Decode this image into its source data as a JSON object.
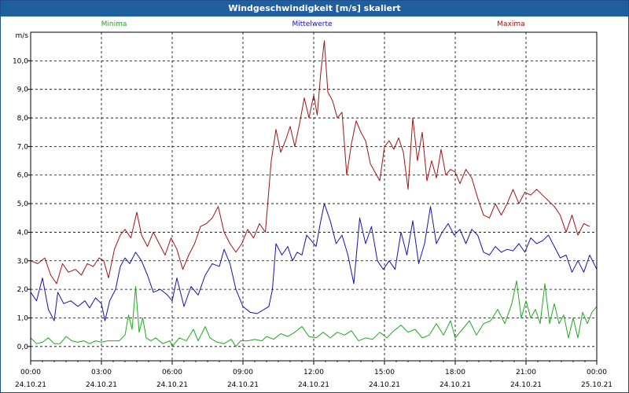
{
  "window": {
    "title": "Windgeschwindigkeit [m/s] skaliert"
  },
  "chart_data": {
    "type": "line",
    "unit_label": "m/s",
    "ylim": [
      -0.5,
      11.0
    ],
    "y_ticks": [
      0.0,
      1.0,
      2.0,
      3.0,
      4.0,
      5.0,
      6.0,
      7.0,
      8.0,
      9.0,
      10.0
    ],
    "y_tick_labels": [
      "0,0",
      "1,0",
      "2,0",
      "3,0",
      "4,0",
      "5,0",
      "6,0",
      "7,0",
      "8,0",
      "9,0",
      "10,0"
    ],
    "xlim": [
      0,
      24
    ],
    "x_ticks": [
      0,
      3,
      6,
      9,
      12,
      15,
      18,
      21,
      24
    ],
    "x_tick_labels": [
      [
        "00:00",
        "24.10.21"
      ],
      [
        "03:00",
        "24.10.21"
      ],
      [
        "06:00",
        "24.10.21"
      ],
      [
        "09:00",
        "24.10.21"
      ],
      [
        "12:00",
        "24.10.21"
      ],
      [
        "15:00",
        "24.10.21"
      ],
      [
        "18:00",
        "24.10.21"
      ],
      [
        "21:00",
        "24.10.21"
      ],
      [
        "00:00",
        "25.10.21"
      ]
    ],
    "grid": true,
    "legend_position": "top",
    "series": [
      {
        "name": "Minima",
        "color": "#1faa1f",
        "values": [
          [
            0.0,
            0.3
          ],
          [
            0.25,
            0.1
          ],
          [
            0.5,
            0.15
          ],
          [
            0.75,
            0.3
          ],
          [
            1.0,
            0.1
          ],
          [
            1.25,
            0.1
          ],
          [
            1.5,
            0.35
          ],
          [
            1.75,
            0.2
          ],
          [
            2.0,
            0.15
          ],
          [
            2.25,
            0.2
          ],
          [
            2.5,
            0.1
          ],
          [
            2.75,
            0.2
          ],
          [
            3.0,
            0.15
          ],
          [
            3.25,
            0.2
          ],
          [
            3.5,
            0.2
          ],
          [
            3.75,
            0.2
          ],
          [
            4.0,
            0.4
          ],
          [
            4.15,
            1.1
          ],
          [
            4.3,
            0.6
          ],
          [
            4.45,
            2.1
          ],
          [
            4.6,
            0.5
          ],
          [
            4.75,
            1.0
          ],
          [
            4.9,
            0.3
          ],
          [
            5.1,
            0.2
          ],
          [
            5.3,
            0.3
          ],
          [
            5.6,
            0.1
          ],
          [
            5.9,
            0.2
          ],
          [
            6.0,
            0.0
          ],
          [
            6.3,
            0.3
          ],
          [
            6.6,
            0.2
          ],
          [
            6.9,
            0.6
          ],
          [
            7.1,
            0.2
          ],
          [
            7.4,
            0.7
          ],
          [
            7.6,
            0.3
          ],
          [
            7.9,
            0.15
          ],
          [
            8.2,
            0.1
          ],
          [
            8.5,
            0.25
          ],
          [
            8.7,
            0.0
          ],
          [
            8.9,
            0.2
          ],
          [
            9.2,
            0.2
          ],
          [
            9.5,
            0.25
          ],
          [
            9.8,
            0.2
          ],
          [
            10.0,
            0.35
          ],
          [
            10.3,
            0.25
          ],
          [
            10.6,
            0.45
          ],
          [
            10.9,
            0.35
          ],
          [
            11.2,
            0.5
          ],
          [
            11.5,
            0.7
          ],
          [
            11.8,
            0.35
          ],
          [
            12.1,
            0.3
          ],
          [
            12.4,
            0.5
          ],
          [
            12.7,
            0.3
          ],
          [
            13.0,
            0.5
          ],
          [
            13.3,
            0.4
          ],
          [
            13.6,
            0.55
          ],
          [
            13.9,
            0.2
          ],
          [
            14.2,
            0.3
          ],
          [
            14.5,
            0.25
          ],
          [
            14.8,
            0.5
          ],
          [
            15.1,
            0.3
          ],
          [
            15.4,
            0.55
          ],
          [
            15.7,
            0.75
          ],
          [
            16.0,
            0.5
          ],
          [
            16.3,
            0.6
          ],
          [
            16.6,
            0.3
          ],
          [
            16.9,
            0.4
          ],
          [
            17.2,
            0.8
          ],
          [
            17.5,
            0.4
          ],
          [
            17.8,
            0.9
          ],
          [
            18.0,
            0.3
          ],
          [
            18.3,
            0.6
          ],
          [
            18.6,
            0.9
          ],
          [
            18.9,
            0.4
          ],
          [
            19.2,
            0.8
          ],
          [
            19.5,
            0.9
          ],
          [
            19.8,
            1.3
          ],
          [
            20.1,
            0.8
          ],
          [
            20.4,
            1.5
          ],
          [
            20.6,
            2.3
          ],
          [
            20.8,
            1.0
          ],
          [
            21.0,
            1.6
          ],
          [
            21.2,
            1.0
          ],
          [
            21.4,
            1.3
          ],
          [
            21.6,
            0.8
          ],
          [
            21.8,
            2.2
          ],
          [
            22.0,
            0.8
          ],
          [
            22.2,
            1.5
          ],
          [
            22.4,
            0.8
          ],
          [
            22.6,
            1.1
          ],
          [
            22.8,
            0.3
          ],
          [
            23.0,
            1.0
          ],
          [
            23.2,
            0.3
          ],
          [
            23.4,
            1.2
          ],
          [
            23.6,
            0.8
          ],
          [
            23.8,
            1.2
          ],
          [
            24.0,
            1.4
          ]
        ]
      },
      {
        "name": "Mittelwerte",
        "color": "#1414aa",
        "values": [
          [
            0.0,
            1.9
          ],
          [
            0.25,
            1.6
          ],
          [
            0.5,
            2.4
          ],
          [
            0.75,
            1.3
          ],
          [
            1.0,
            0.9
          ],
          [
            1.15,
            1.9
          ],
          [
            1.4,
            1.5
          ],
          [
            1.7,
            1.6
          ],
          [
            2.0,
            1.4
          ],
          [
            2.3,
            1.6
          ],
          [
            2.5,
            1.35
          ],
          [
            2.75,
            1.7
          ],
          [
            3.0,
            1.5
          ],
          [
            3.15,
            0.9
          ],
          [
            3.35,
            1.6
          ],
          [
            3.6,
            2.0
          ],
          [
            3.8,
            2.8
          ],
          [
            4.0,
            3.1
          ],
          [
            4.2,
            2.9
          ],
          [
            4.45,
            3.3
          ],
          [
            4.7,
            3.0
          ],
          [
            4.95,
            2.5
          ],
          [
            5.2,
            1.9
          ],
          [
            5.5,
            2.0
          ],
          [
            5.8,
            1.8
          ],
          [
            6.0,
            1.6
          ],
          [
            6.2,
            2.4
          ],
          [
            6.5,
            1.4
          ],
          [
            6.8,
            2.1
          ],
          [
            7.1,
            1.8
          ],
          [
            7.4,
            2.5
          ],
          [
            7.7,
            2.9
          ],
          [
            8.0,
            2.8
          ],
          [
            8.2,
            3.4
          ],
          [
            8.45,
            2.9
          ],
          [
            8.7,
            2.0
          ],
          [
            9.0,
            1.4
          ],
          [
            9.3,
            1.2
          ],
          [
            9.6,
            1.15
          ],
          [
            9.9,
            1.3
          ],
          [
            10.1,
            1.4
          ],
          [
            10.25,
            2.0
          ],
          [
            10.4,
            3.6
          ],
          [
            10.65,
            3.2
          ],
          [
            10.9,
            3.5
          ],
          [
            11.1,
            3.0
          ],
          [
            11.3,
            3.3
          ],
          [
            11.5,
            3.2
          ],
          [
            11.7,
            3.9
          ],
          [
            11.9,
            3.7
          ],
          [
            12.1,
            3.5
          ],
          [
            12.3,
            4.4
          ],
          [
            12.45,
            5.0
          ],
          [
            12.7,
            4.4
          ],
          [
            12.95,
            3.6
          ],
          [
            13.2,
            3.9
          ],
          [
            13.45,
            3.2
          ],
          [
            13.7,
            2.2
          ],
          [
            13.95,
            4.5
          ],
          [
            14.2,
            3.6
          ],
          [
            14.45,
            4.2
          ],
          [
            14.7,
            3.0
          ],
          [
            14.95,
            2.7
          ],
          [
            15.2,
            3.0
          ],
          [
            15.45,
            2.7
          ],
          [
            15.7,
            4.0
          ],
          [
            15.95,
            3.2
          ],
          [
            16.2,
            4.4
          ],
          [
            16.45,
            2.9
          ],
          [
            16.7,
            3.6
          ],
          [
            16.95,
            4.9
          ],
          [
            17.2,
            3.6
          ],
          [
            17.45,
            4.0
          ],
          [
            17.7,
            4.3
          ],
          [
            17.95,
            3.9
          ],
          [
            18.2,
            4.1
          ],
          [
            18.45,
            3.6
          ],
          [
            18.7,
            4.1
          ],
          [
            18.95,
            3.9
          ],
          [
            19.2,
            3.3
          ],
          [
            19.45,
            3.2
          ],
          [
            19.7,
            3.5
          ],
          [
            19.95,
            3.3
          ],
          [
            20.2,
            3.4
          ],
          [
            20.45,
            3.35
          ],
          [
            20.7,
            3.6
          ],
          [
            20.95,
            3.3
          ],
          [
            21.2,
            3.8
          ],
          [
            21.45,
            3.6
          ],
          [
            21.7,
            3.7
          ],
          [
            21.95,
            3.9
          ],
          [
            22.2,
            3.5
          ],
          [
            22.45,
            3.1
          ],
          [
            22.7,
            3.2
          ],
          [
            22.95,
            2.6
          ],
          [
            23.2,
            3.0
          ],
          [
            23.45,
            2.6
          ],
          [
            23.7,
            3.2
          ],
          [
            24.0,
            2.7
          ]
        ]
      },
      {
        "name": "Maxima",
        "color": "#a01414",
        "values": [
          [
            0.0,
            3.0
          ],
          [
            0.3,
            2.9
          ],
          [
            0.6,
            3.1
          ],
          [
            0.85,
            2.5
          ],
          [
            1.1,
            2.2
          ],
          [
            1.35,
            2.9
          ],
          [
            1.6,
            2.6
          ],
          [
            1.9,
            2.7
          ],
          [
            2.15,
            2.5
          ],
          [
            2.4,
            2.9
          ],
          [
            2.65,
            2.8
          ],
          [
            2.9,
            3.1
          ],
          [
            3.1,
            3.0
          ],
          [
            3.3,
            2.4
          ],
          [
            3.55,
            3.4
          ],
          [
            3.8,
            3.9
          ],
          [
            4.0,
            4.1
          ],
          [
            4.25,
            3.8
          ],
          [
            4.5,
            4.7
          ],
          [
            4.7,
            3.9
          ],
          [
            4.95,
            3.5
          ],
          [
            5.2,
            4.0
          ],
          [
            5.45,
            3.6
          ],
          [
            5.7,
            3.2
          ],
          [
            5.95,
            3.8
          ],
          [
            6.2,
            3.4
          ],
          [
            6.45,
            2.7
          ],
          [
            6.7,
            3.2
          ],
          [
            6.95,
            3.6
          ],
          [
            7.2,
            4.2
          ],
          [
            7.45,
            4.3
          ],
          [
            7.7,
            4.5
          ],
          [
            7.95,
            4.9
          ],
          [
            8.2,
            4.0
          ],
          [
            8.45,
            3.6
          ],
          [
            8.7,
            3.3
          ],
          [
            8.95,
            3.6
          ],
          [
            9.2,
            4.1
          ],
          [
            9.45,
            3.8
          ],
          [
            9.7,
            4.3
          ],
          [
            9.95,
            4.0
          ],
          [
            10.2,
            6.5
          ],
          [
            10.4,
            7.6
          ],
          [
            10.6,
            6.8
          ],
          [
            10.8,
            7.2
          ],
          [
            11.0,
            7.7
          ],
          [
            11.2,
            7.0
          ],
          [
            11.4,
            7.8
          ],
          [
            11.6,
            8.7
          ],
          [
            11.8,
            8.0
          ],
          [
            12.0,
            8.8
          ],
          [
            12.15,
            8.1
          ],
          [
            12.3,
            9.6
          ],
          [
            12.45,
            10.7
          ],
          [
            12.6,
            8.9
          ],
          [
            12.8,
            8.6
          ],
          [
            13.0,
            8.0
          ],
          [
            13.2,
            8.2
          ],
          [
            13.4,
            6.0
          ],
          [
            13.6,
            7.1
          ],
          [
            13.8,
            7.9
          ],
          [
            14.0,
            7.5
          ],
          [
            14.2,
            7.2
          ],
          [
            14.4,
            6.4
          ],
          [
            14.6,
            6.1
          ],
          [
            14.8,
            5.8
          ],
          [
            15.0,
            7.0
          ],
          [
            15.2,
            7.2
          ],
          [
            15.4,
            6.9
          ],
          [
            15.6,
            7.3
          ],
          [
            15.8,
            6.8
          ],
          [
            16.0,
            5.5
          ],
          [
            16.2,
            8.0
          ],
          [
            16.4,
            6.5
          ],
          [
            16.6,
            7.5
          ],
          [
            16.8,
            5.8
          ],
          [
            17.0,
            6.5
          ],
          [
            17.2,
            5.9
          ],
          [
            17.4,
            6.9
          ],
          [
            17.6,
            6.0
          ],
          [
            17.8,
            6.2
          ],
          [
            18.0,
            6.1
          ],
          [
            18.2,
            5.7
          ],
          [
            18.45,
            6.2
          ],
          [
            18.7,
            5.9
          ],
          [
            18.95,
            5.2
          ],
          [
            19.2,
            4.6
          ],
          [
            19.45,
            4.5
          ],
          [
            19.7,
            5.0
          ],
          [
            19.95,
            4.6
          ],
          [
            20.2,
            5.0
          ],
          [
            20.45,
            5.5
          ],
          [
            20.7,
            5.0
          ],
          [
            20.95,
            5.4
          ],
          [
            21.2,
            5.3
          ],
          [
            21.45,
            5.5
          ],
          [
            21.7,
            5.3
          ],
          [
            21.95,
            5.1
          ],
          [
            22.2,
            4.9
          ],
          [
            22.45,
            4.6
          ],
          [
            22.7,
            4.0
          ],
          [
            22.95,
            4.6
          ],
          [
            23.2,
            3.9
          ],
          [
            23.45,
            4.3
          ],
          [
            23.7,
            4.2
          ]
        ]
      }
    ]
  }
}
